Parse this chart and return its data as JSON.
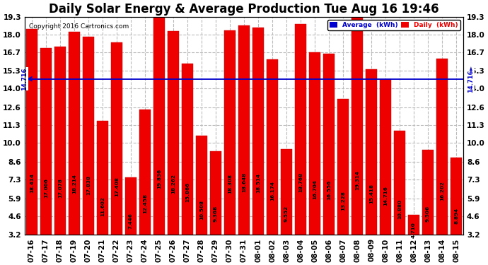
{
  "title": "Daily Solar Energy & Average Production Tue Aug 16 19:46",
  "copyright": "Copyright 2016 Cartronics.com",
  "categories": [
    "07-16",
    "07-17",
    "07-18",
    "07-19",
    "07-20",
    "07-21",
    "07-22",
    "07-23",
    "07-24",
    "07-25",
    "07-26",
    "07-27",
    "07-28",
    "07-29",
    "07-30",
    "07-31",
    "08-01",
    "08-02",
    "08-03",
    "08-04",
    "08-05",
    "08-06",
    "08-07",
    "08-08",
    "08-09",
    "08-10",
    "08-11",
    "08-12",
    "08-13",
    "08-14",
    "08-15"
  ],
  "values": [
    18.414,
    17.006,
    17.078,
    18.214,
    17.838,
    11.602,
    17.408,
    7.446,
    12.458,
    19.836,
    18.262,
    15.866,
    10.508,
    9.368,
    18.308,
    18.648,
    18.514,
    16.174,
    9.552,
    18.768,
    16.704,
    16.556,
    13.228,
    19.314,
    15.418,
    14.716,
    10.88,
    4.71,
    9.506,
    16.202,
    8.894
  ],
  "average": 14.716,
  "bar_color": "#ee0000",
  "average_line_color": "#0000cc",
  "ylim": [
    3.2,
    19.3
  ],
  "yticks": [
    3.2,
    4.6,
    5.9,
    7.3,
    8.6,
    10.0,
    11.3,
    12.6,
    14.0,
    15.3,
    16.7,
    18.0,
    19.3
  ],
  "background_color": "#ffffff",
  "grid_color": "#bbbbbb",
  "title_fontsize": 12,
  "tick_fontsize": 7.5,
  "legend_avg_color": "#0000cc",
  "legend_daily_color": "#ee0000"
}
